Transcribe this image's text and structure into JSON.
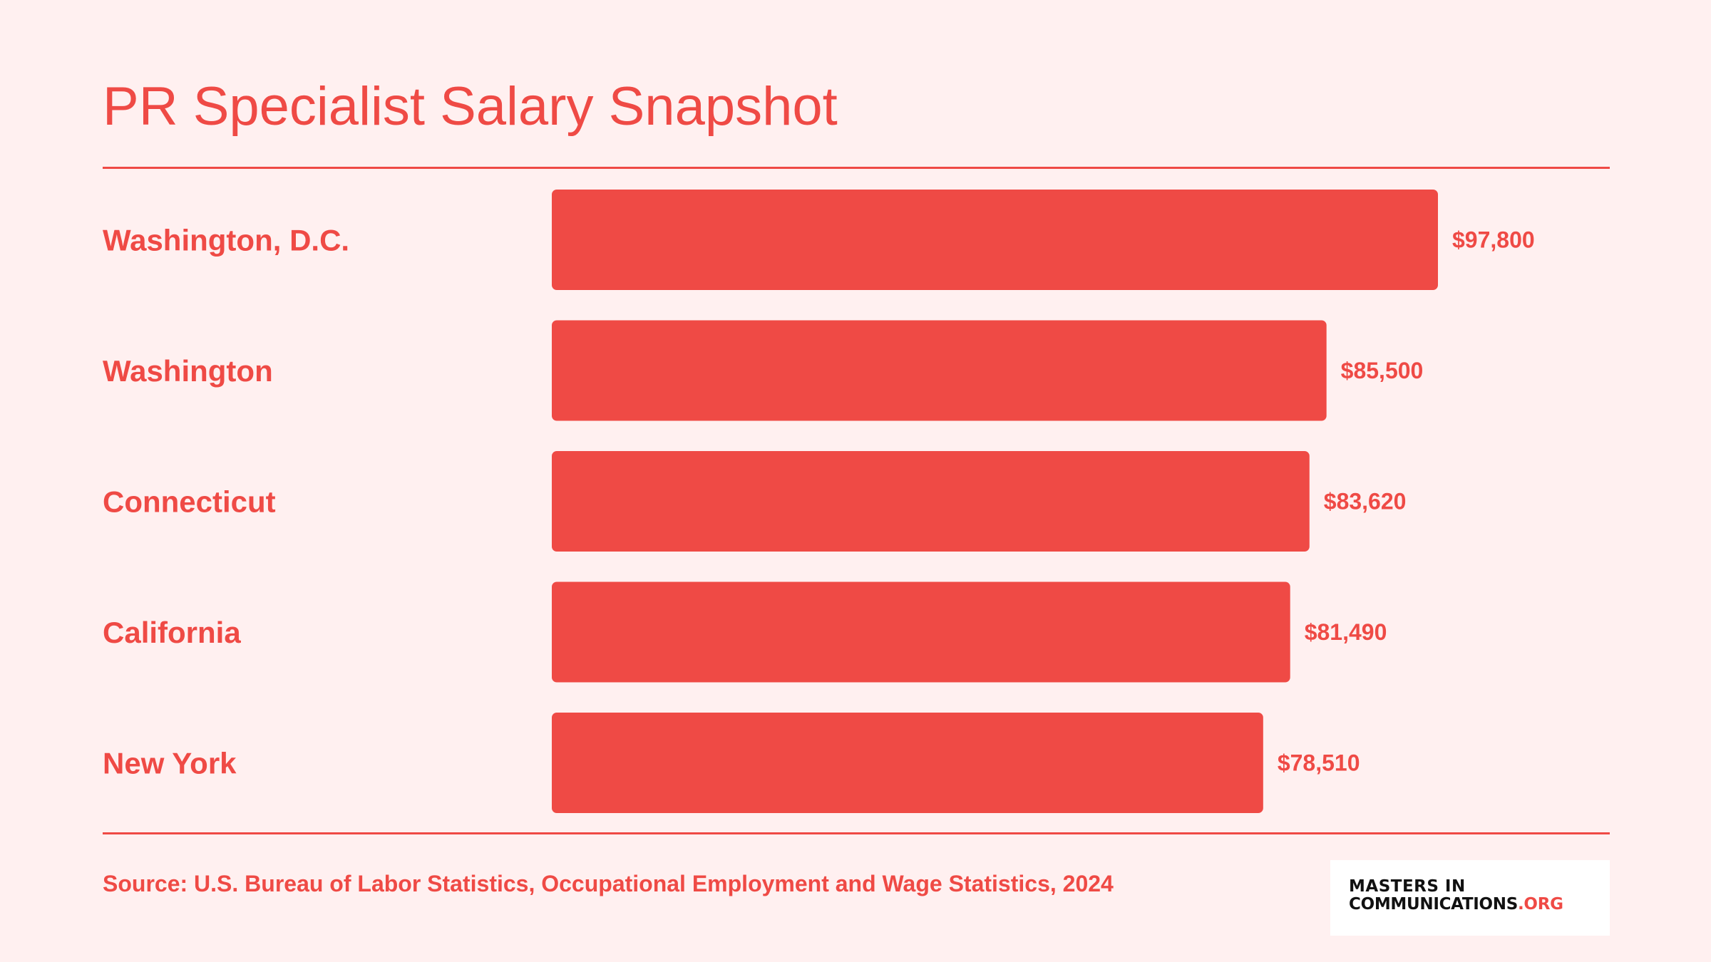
{
  "chart_data": {
    "type": "bar",
    "orientation": "horizontal",
    "title": "PR Specialist Salary Snapshot",
    "categories": [
      "Washington, D.C.",
      "Washington",
      "Connecticut",
      "California",
      "New York"
    ],
    "values": [
      97800,
      85500,
      83620,
      81490,
      78510
    ],
    "value_labels": [
      "$97,800",
      "$85,500",
      "$83,620",
      "$81,490",
      "$78,510"
    ],
    "xlim": [
      0,
      97800
    ],
    "grid": false,
    "legend": "none",
    "bar_color": "#ef4a45"
  },
  "footer": {
    "source": "Source: U.S. Bureau of Labor Statistics, Occupational Employment and Wage Statistics, 2024"
  },
  "logo": {
    "line1": "MASTERS IN",
    "line2": "COMMUNICATIONS",
    "line2_suffix": ".ORG"
  },
  "colors": {
    "background": "#fff0f0",
    "accent": "#ef4a45",
    "logo_text": "#111111"
  }
}
